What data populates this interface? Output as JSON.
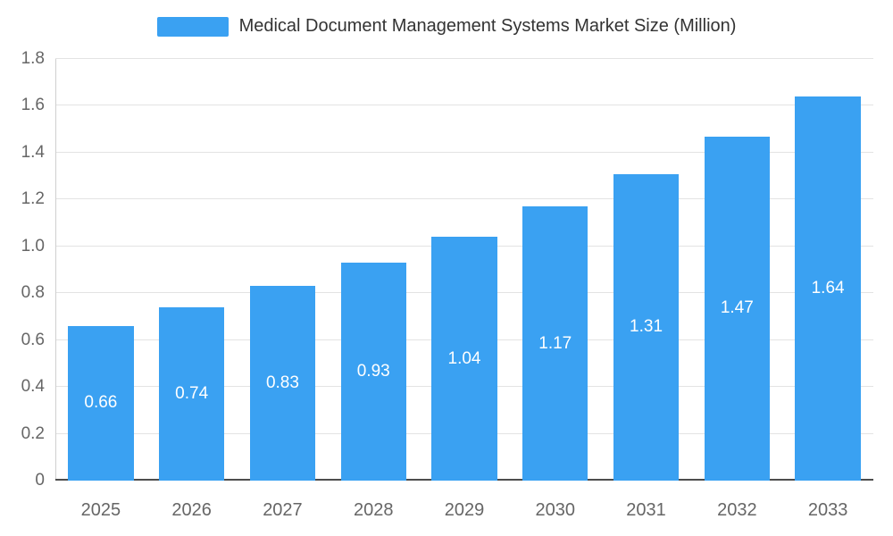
{
  "legend": {
    "label": "Medical Document Management Systems Market Size (Million)"
  },
  "chart_data": {
    "type": "bar",
    "title": "Medical Document Management Systems Market Size (Million)",
    "categories": [
      "2025",
      "2026",
      "2027",
      "2028",
      "2029",
      "2030",
      "2031",
      "2032",
      "2033"
    ],
    "values": [
      0.66,
      0.74,
      0.83,
      0.93,
      1.04,
      1.17,
      1.31,
      1.47,
      1.64
    ],
    "value_labels": [
      "0.66",
      "0.74",
      "0.83",
      "0.93",
      "1.04",
      "1.17",
      "1.31",
      "1.47",
      "1.64"
    ],
    "xlabel": "",
    "ylabel": "",
    "ylim": [
      0,
      1.8
    ],
    "ytick_step": 0.2,
    "ytick_labels": [
      "0",
      "0.2",
      "0.4",
      "0.6",
      "0.8",
      "1.0",
      "1.2",
      "1.4",
      "1.6",
      "1.8"
    ],
    "grid": true,
    "legend_position": "top",
    "bar_color": "#3aa1f2",
    "bar_label_color": "#ffffff",
    "axis_label_color": "#666666",
    "grid_color": "#e3e3e3"
  }
}
